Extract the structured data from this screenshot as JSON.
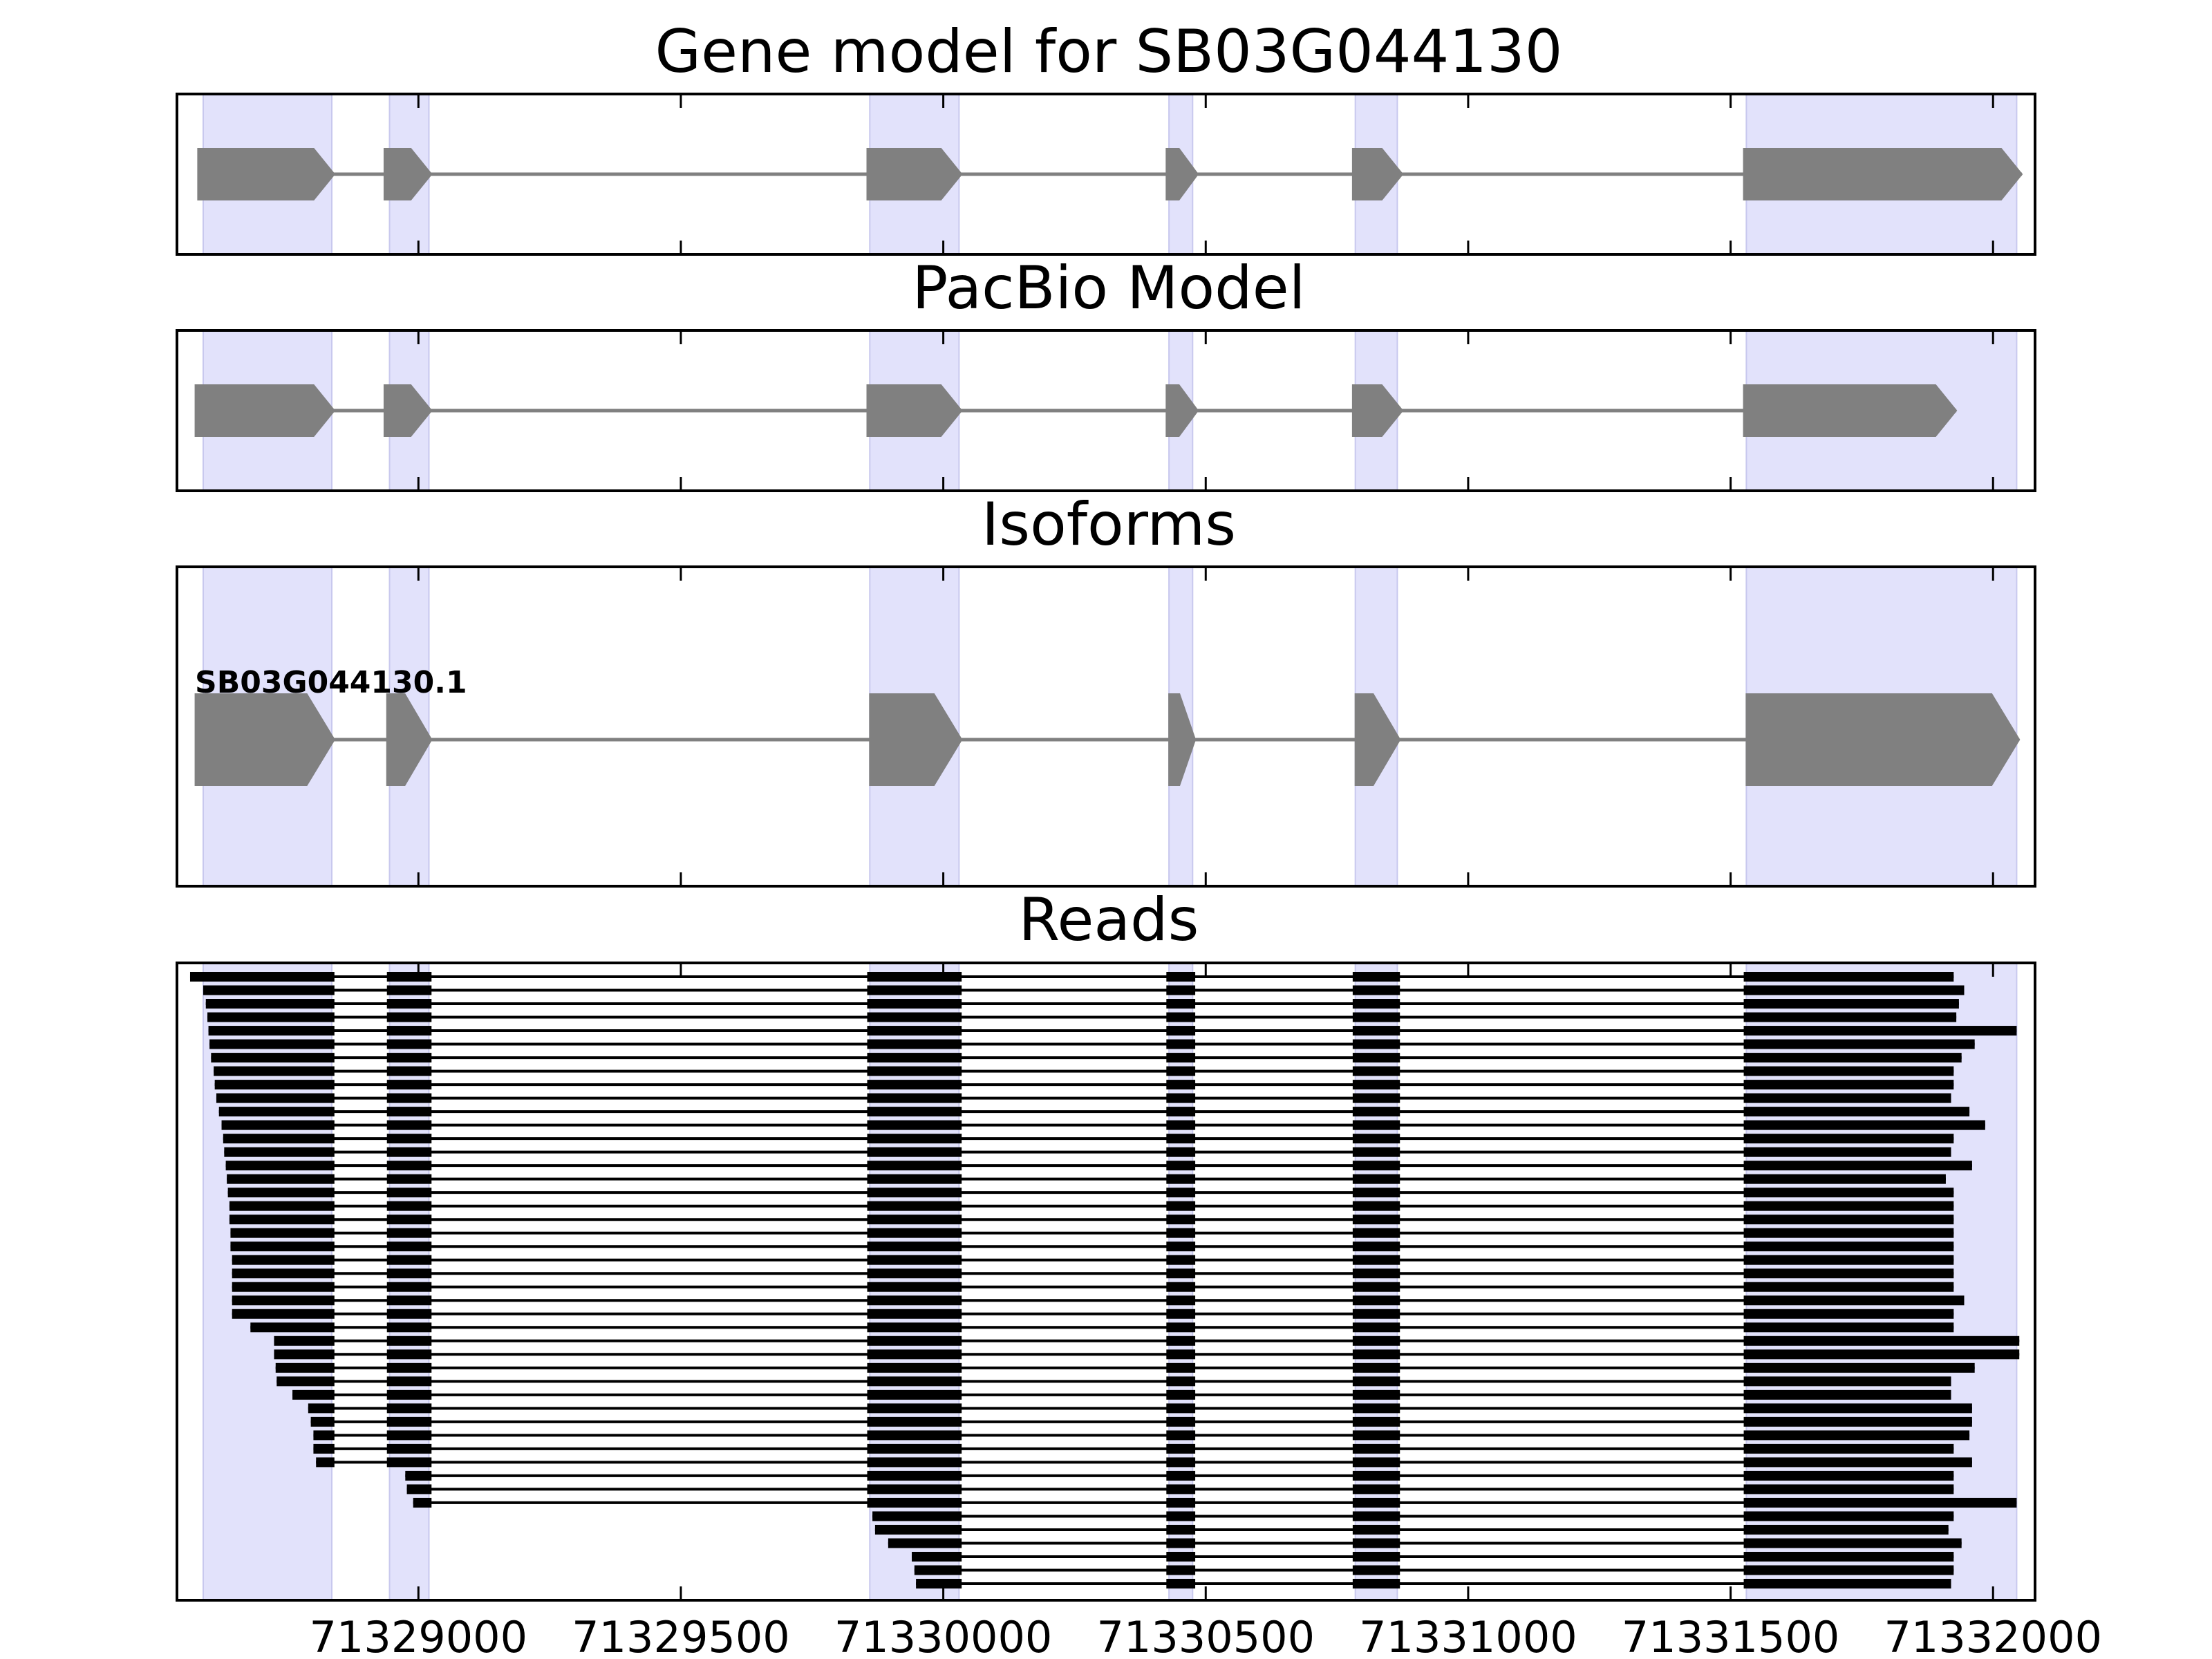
{
  "chart_data": {
    "type": "gene-track",
    "xlim": [
      71328540,
      71332080
    ],
    "x_ticks": [
      71329000,
      71329500,
      71330000,
      71330500,
      71331000,
      71331500,
      71332000
    ],
    "exon_regions": [
      [
        71328590,
        71328835
      ],
      [
        71328945,
        71329020
      ],
      [
        71329860,
        71330030
      ],
      [
        71330430,
        71330475
      ],
      [
        71330785,
        71330865
      ],
      [
        71331530,
        71332045
      ]
    ],
    "panels": [
      {
        "id": "gene-model",
        "title": "Gene model for SB03G044130",
        "type": "gene-model",
        "exons": [
          [
            71328580,
            71328840
          ],
          [
            71328935,
            71329025
          ],
          [
            71329855,
            71330035
          ],
          [
            71330425,
            71330485
          ],
          [
            71330780,
            71330875
          ],
          [
            71331525,
            71332055
          ]
        ]
      },
      {
        "id": "pacbio-model",
        "title": "PacBio Model",
        "type": "gene-model",
        "exons": [
          [
            71328575,
            71328840
          ],
          [
            71328935,
            71329025
          ],
          [
            71329855,
            71330035
          ],
          [
            71330425,
            71330485
          ],
          [
            71330780,
            71330875
          ],
          [
            71331525,
            71331930
          ]
        ]
      },
      {
        "id": "isoforms",
        "title": "Isoforms",
        "type": "isoforms",
        "isoforms": [
          {
            "name": "SB03G044130.1",
            "exons": [
              [
                71328575,
                71328840
              ],
              [
                71328940,
                71329025
              ],
              [
                71329860,
                71330035
              ],
              [
                71330430,
                71330480
              ],
              [
                71330785,
                71330870
              ],
              [
                71331530,
                71332050
              ]
            ]
          }
        ]
      },
      {
        "id": "reads",
        "title": "Reads",
        "type": "reads",
        "reads": [
          [
            71328565,
            71331925
          ],
          [
            71328590,
            71331945
          ],
          [
            71328595,
            71331935
          ],
          [
            71328598,
            71331930
          ],
          [
            71328600,
            71332045
          ],
          [
            71328602,
            71331965
          ],
          [
            71328605,
            71331940
          ],
          [
            71328610,
            71331925
          ],
          [
            71328612,
            71331925
          ],
          [
            71328615,
            71331920
          ],
          [
            71328620,
            71331955
          ],
          [
            71328625,
            71331985
          ],
          [
            71328628,
            71331925
          ],
          [
            71328630,
            71331920
          ],
          [
            71328633,
            71331960
          ],
          [
            71328635,
            71331910
          ],
          [
            71328637,
            71331925
          ],
          [
            71328640,
            71331925
          ],
          [
            71328640,
            71331925
          ],
          [
            71328642,
            71331925
          ],
          [
            71328642,
            71331925
          ],
          [
            71328645,
            71331925
          ],
          [
            71328645,
            71331925
          ],
          [
            71328645,
            71331925
          ],
          [
            71328645,
            71331945
          ],
          [
            71328645,
            71331925
          ],
          [
            71328680,
            71331925
          ],
          [
            71328725,
            71332050
          ],
          [
            71328725,
            71332050
          ],
          [
            71328728,
            71331965
          ],
          [
            71328730,
            71331920
          ],
          [
            71328760,
            71331920
          ],
          [
            71328790,
            71331960
          ],
          [
            71328795,
            71331960
          ],
          [
            71328800,
            71331955
          ],
          [
            71328800,
            71331925
          ],
          [
            71328805,
            71331960
          ],
          [
            71328975,
            71331925
          ],
          [
            71328978,
            71331925
          ],
          [
            71328990,
            71332045
          ],
          [
            71329865,
            71331925
          ],
          [
            71329870,
            71331915
          ],
          [
            71329895,
            71331940
          ],
          [
            71329940,
            71331925
          ],
          [
            71329945,
            71331925
          ],
          [
            71329948,
            71331920
          ]
        ]
      }
    ]
  }
}
